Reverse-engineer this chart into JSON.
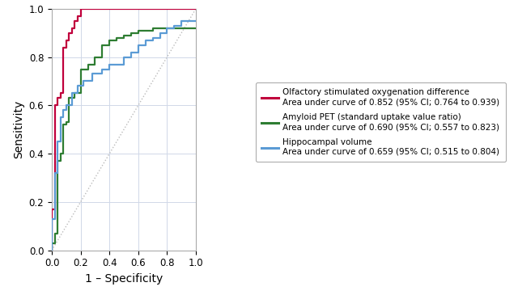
{
  "title": "",
  "xlabel": "1 – Specificity",
  "ylabel": "Sensitivity",
  "xlim": [
    0.0,
    1.0
  ],
  "ylim": [
    0.0,
    1.0
  ],
  "diagonal_color": "#bbbbbb",
  "background_color": "#ffffff",
  "grid_color": "#d0d8e8",
  "curves": [
    {
      "label": "Olfactory stimulated oxygenation difference\nArea under curve of 0.852 (95% CI; 0.764 to 0.939)",
      "color": "#c0003c",
      "linewidth": 1.6,
      "fpr": [
        0.0,
        0.0,
        0.02,
        0.02,
        0.04,
        0.04,
        0.06,
        0.06,
        0.08,
        0.08,
        0.1,
        0.1,
        0.12,
        0.12,
        0.14,
        0.14,
        0.16,
        0.16,
        0.18,
        0.18,
        0.2,
        0.2,
        0.25,
        0.25,
        0.3,
        0.3,
        0.35,
        0.35,
        0.4,
        0.4,
        0.5,
        0.5,
        0.55,
        0.55,
        0.6,
        0.6,
        0.65,
        0.65,
        1.0
      ],
      "tpr": [
        0.0,
        0.17,
        0.17,
        0.6,
        0.6,
        0.63,
        0.63,
        0.65,
        0.65,
        0.84,
        0.84,
        0.87,
        0.87,
        0.9,
        0.9,
        0.92,
        0.92,
        0.95,
        0.95,
        0.97,
        0.97,
        1.0,
        1.0,
        1.0,
        1.0,
        1.0,
        1.0,
        1.0,
        1.0,
        1.0,
        1.0,
        1.0,
        1.0,
        1.0,
        1.0,
        1.0,
        1.0,
        1.0,
        1.0
      ]
    },
    {
      "label": "Amyloid PET (standard uptake value ratio)\nArea under curve of 0.690 (95% CI; 0.557 to 0.823)",
      "color": "#2e7d32",
      "linewidth": 1.6,
      "fpr": [
        0.0,
        0.0,
        0.02,
        0.02,
        0.04,
        0.04,
        0.06,
        0.06,
        0.08,
        0.08,
        0.1,
        0.1,
        0.12,
        0.12,
        0.16,
        0.16,
        0.2,
        0.2,
        0.25,
        0.25,
        0.3,
        0.3,
        0.35,
        0.35,
        0.4,
        0.4,
        0.45,
        0.45,
        0.5,
        0.5,
        0.55,
        0.55,
        0.6,
        0.6,
        0.65,
        0.65,
        0.7,
        0.7,
        0.75,
        0.75,
        0.8,
        0.8,
        0.85,
        0.85,
        0.9,
        0.9,
        1.0
      ],
      "tpr": [
        0.0,
        0.03,
        0.03,
        0.07,
        0.07,
        0.37,
        0.37,
        0.4,
        0.4,
        0.52,
        0.52,
        0.53,
        0.53,
        0.63,
        0.63,
        0.65,
        0.65,
        0.75,
        0.75,
        0.77,
        0.77,
        0.8,
        0.8,
        0.85,
        0.85,
        0.87,
        0.87,
        0.88,
        0.88,
        0.89,
        0.89,
        0.9,
        0.9,
        0.91,
        0.91,
        0.91,
        0.91,
        0.92,
        0.92,
        0.92,
        0.92,
        0.92,
        0.92,
        0.92,
        0.92,
        0.92,
        0.92
      ]
    },
    {
      "label": "Hippocampal volume\nArea under curve of 0.659 (95% CI; 0.515 to 0.804)",
      "color": "#5b9bd5",
      "linewidth": 1.6,
      "fpr": [
        0.0,
        0.0,
        0.02,
        0.02,
        0.04,
        0.04,
        0.06,
        0.06,
        0.08,
        0.08,
        0.1,
        0.1,
        0.14,
        0.14,
        0.18,
        0.18,
        0.22,
        0.22,
        0.28,
        0.28,
        0.35,
        0.35,
        0.4,
        0.4,
        0.5,
        0.5,
        0.55,
        0.55,
        0.6,
        0.6,
        0.65,
        0.65,
        0.7,
        0.7,
        0.75,
        0.75,
        0.8,
        0.8,
        0.85,
        0.85,
        0.9,
        0.9,
        0.95,
        0.95,
        1.0
      ],
      "tpr": [
        0.0,
        0.13,
        0.13,
        0.32,
        0.32,
        0.45,
        0.45,
        0.55,
        0.55,
        0.58,
        0.58,
        0.6,
        0.6,
        0.65,
        0.65,
        0.68,
        0.68,
        0.7,
        0.7,
        0.73,
        0.73,
        0.75,
        0.75,
        0.77,
        0.77,
        0.8,
        0.8,
        0.82,
        0.82,
        0.85,
        0.85,
        0.87,
        0.87,
        0.88,
        0.88,
        0.9,
        0.9,
        0.92,
        0.92,
        0.93,
        0.93,
        0.95,
        0.95,
        0.95,
        0.95
      ]
    }
  ],
  "legend_fontsize": 7.5,
  "tick_fontsize": 8.5,
  "xlabel_fontsize": 10,
  "ylabel_fontsize": 10
}
